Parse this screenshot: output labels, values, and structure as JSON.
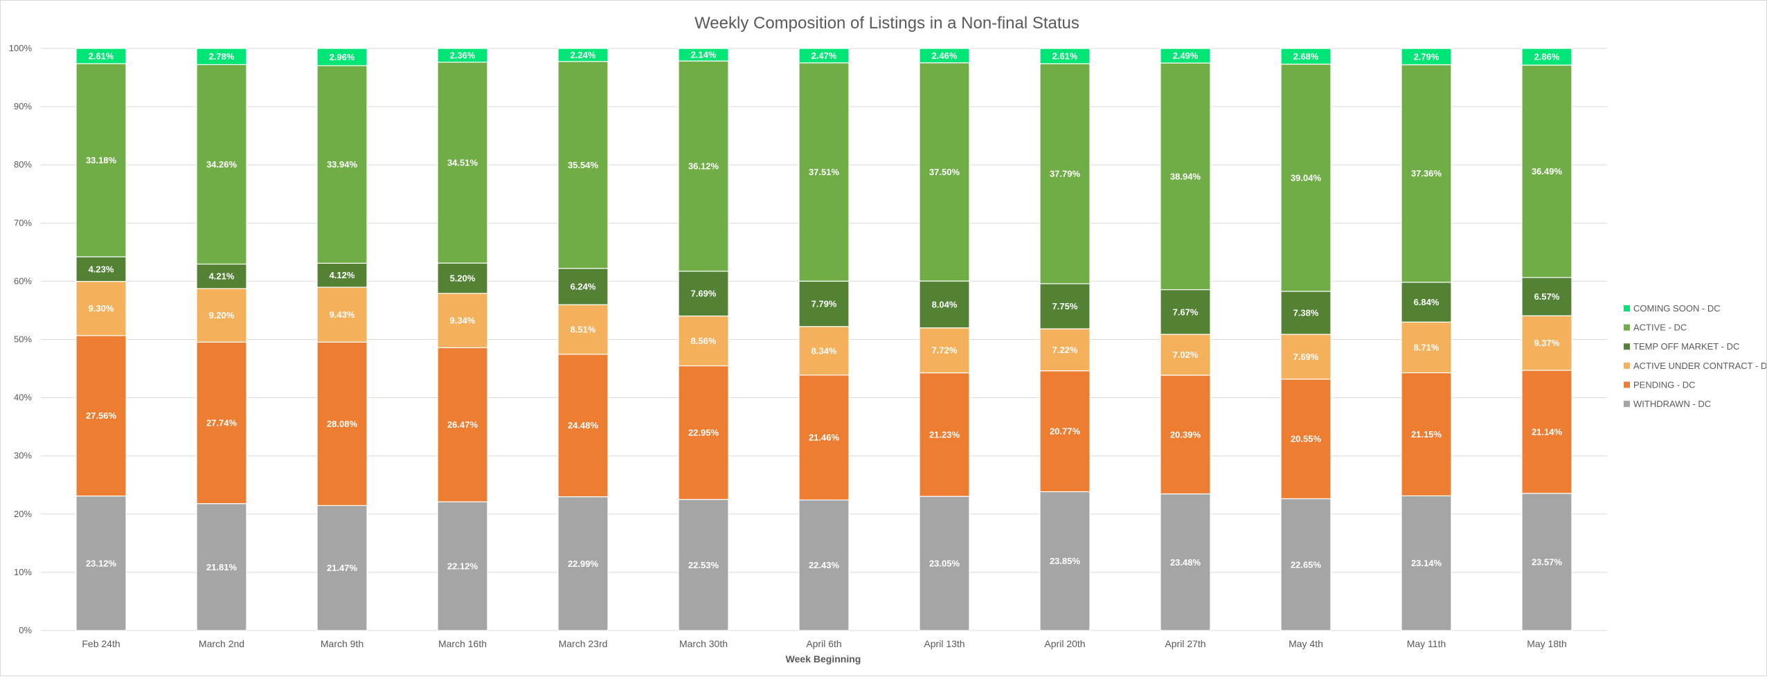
{
  "chart_data": {
    "type": "bar",
    "stacked": true,
    "percent_stacked": true,
    "title": "Weekly Composition of Listings in a Non-final Status",
    "xlabel": "Week Beginning",
    "ylabel": "",
    "ylim": [
      0,
      100
    ],
    "y_ticks": [
      "0%",
      "10%",
      "20%",
      "30%",
      "40%",
      "50%",
      "60%",
      "70%",
      "80%",
      "90%",
      "100%"
    ],
    "grid": true,
    "legend_position": "right",
    "categories": [
      "Feb 24th",
      "March 2nd",
      "March 9th",
      "March 16th",
      "March 23rd",
      "March 30th",
      "April 6th",
      "April 13th",
      "April 20th",
      "April 27th",
      "May 4th",
      "May 11th",
      "May 18th"
    ],
    "series": [
      {
        "name": "WITHDRAWN - DC",
        "color": "#a5a5a5",
        "values": [
          23.12,
          21.81,
          21.47,
          22.12,
          22.99,
          22.53,
          22.43,
          23.05,
          23.85,
          23.48,
          22.65,
          23.14,
          23.57
        ],
        "labels": [
          "23.12%",
          "21.81%",
          "21.47%",
          "22.12%",
          "22.99%",
          "22.53%",
          "22.43%",
          "23.05%",
          "23.85%",
          "23.48%",
          "22.65%",
          "23.14%",
          "23.57%"
        ]
      },
      {
        "name": "PENDING - DC",
        "color": "#ed7d31",
        "values": [
          27.56,
          27.74,
          28.08,
          26.47,
          24.48,
          22.95,
          21.46,
          21.23,
          20.77,
          20.39,
          20.55,
          21.15,
          21.14
        ],
        "labels": [
          "27.56%",
          "27.74%",
          "28.08%",
          "26.47%",
          "24.48%",
          "22.95%",
          "21.46%",
          "21.23%",
          "20.77%",
          "20.39%",
          "20.55%",
          "21.15%",
          "21.14%"
        ]
      },
      {
        "name": "ACTIVE UNDER CONTRACT - DC",
        "color": "#f4b05a",
        "values": [
          9.3,
          9.2,
          9.43,
          9.34,
          8.51,
          8.56,
          8.34,
          7.72,
          7.22,
          7.02,
          7.69,
          8.71,
          9.37
        ],
        "labels": [
          "9.30%",
          "9.20%",
          "9.43%",
          "9.34%",
          "8.51%",
          "8.56%",
          "8.34%",
          "7.72%",
          "7.22%",
          "7.02%",
          "7.69%",
          "8.71%",
          "9.37%"
        ]
      },
      {
        "name": "TEMP OFF MARKET - DC",
        "color": "#548235",
        "values": [
          4.23,
          4.21,
          4.12,
          5.2,
          6.24,
          7.69,
          7.79,
          8.04,
          7.75,
          7.67,
          7.38,
          6.84,
          6.57
        ],
        "labels": [
          "4.23%",
          "4.21%",
          "4.12%",
          "5.20%",
          "6.24%",
          "7.69%",
          "7.79%",
          "8.04%",
          "7.75%",
          "7.67%",
          "7.38%",
          "6.84%",
          "6.57%"
        ]
      },
      {
        "name": "ACTIVE - DC",
        "color": "#70ad47",
        "values": [
          33.18,
          34.26,
          33.94,
          34.51,
          35.54,
          36.12,
          37.51,
          37.5,
          37.79,
          38.94,
          39.04,
          37.36,
          36.49
        ],
        "labels": [
          "33.18%",
          "34.26%",
          "33.94%",
          "34.51%",
          "35.54%",
          "36.12%",
          "37.51%",
          "37.50%",
          "37.79%",
          "38.94%",
          "39.04%",
          "37.36%",
          "36.49%"
        ]
      },
      {
        "name": "COMING SOON - DC",
        "color": "#00e676",
        "values": [
          2.61,
          2.78,
          2.96,
          2.36,
          2.24,
          2.14,
          2.47,
          2.46,
          2.61,
          2.49,
          2.68,
          2.79,
          2.86
        ],
        "labels": [
          "2.61%",
          "2.78%",
          "2.96%",
          "2.36%",
          "2.24%",
          "2.14%",
          "2.47%",
          "2.46%",
          "2.61%",
          "2.49%",
          "2.68%",
          "2.79%",
          "2.86%"
        ]
      }
    ]
  }
}
